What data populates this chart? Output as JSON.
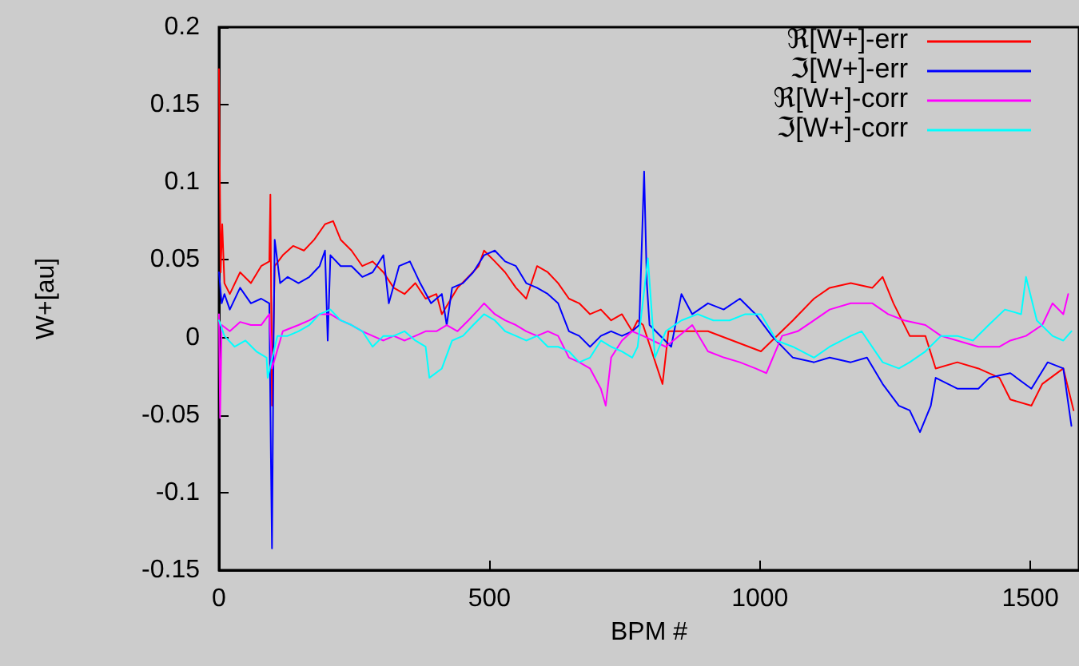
{
  "chart_data": {
    "type": "line",
    "xlabel": "BPM #",
    "ylabel": "W+[au]",
    "xlim": [
      0,
      1590
    ],
    "xticks": [
      0,
      500,
      1000,
      1500
    ],
    "ylim": [
      -0.15,
      0.2
    ],
    "yticks": [
      -0.15,
      -0.1,
      -0.05,
      0,
      0.05,
      0.1,
      0.15,
      0.2
    ],
    "grid": false,
    "legend": "top right",
    "marker": "none",
    "line_style": "solid",
    "series": [
      {
        "name": "ℜ[W+]-err",
        "color": "#ff0000",
        "x": [
          0,
          3,
          6,
          10,
          20,
          39,
          59,
          78,
          93,
          95,
          98,
          103,
          118,
          137,
          157,
          176,
          196,
          211,
          225,
          245,
          265,
          284,
          304,
          323,
          343,
          363,
          382,
          402,
          412,
          441,
          461,
          480,
          490,
          510,
          529,
          549,
          568,
          588,
          608,
          627,
          647,
          666,
          686,
          706,
          725,
          745,
          764,
          774,
          784,
          820,
          831,
          904,
          1002,
          1061,
          1100,
          1129,
          1168,
          1208,
          1227,
          1247,
          1277,
          1306,
          1325,
          1365,
          1404,
          1443,
          1463,
          1502,
          1522,
          1561,
          1580
        ],
        "values": [
          0.173,
          0.042,
          0.073,
          0.035,
          0.028,
          0.042,
          0.035,
          0.046,
          0.049,
          0.092,
          -0.044,
          0.046,
          0.053,
          0.059,
          0.056,
          0.063,
          0.073,
          0.075,
          0.063,
          0.056,
          0.046,
          0.049,
          0.042,
          0.032,
          0.028,
          0.035,
          0.025,
          0.028,
          0.015,
          0.032,
          0.039,
          0.046,
          0.056,
          0.049,
          0.042,
          0.032,
          0.025,
          0.046,
          0.042,
          0.035,
          0.025,
          0.022,
          0.015,
          0.018,
          0.011,
          0.015,
          0.004,
          0.011,
          0.008,
          -0.03,
          0.004,
          0.004,
          -0.009,
          0.011,
          0.025,
          0.032,
          0.035,
          0.032,
          0.039,
          0.022,
          0.001,
          0.001,
          -0.02,
          -0.016,
          -0.02,
          -0.026,
          -0.04,
          -0.044,
          -0.03,
          -0.02,
          -0.047
        ]
      },
      {
        "name": "ℑ[W+]-err",
        "color": "#0000ff",
        "x": [
          0,
          5,
          10,
          20,
          39,
          59,
          78,
          93,
          96,
          98,
          101,
          103,
          113,
          127,
          147,
          167,
          186,
          196,
          201,
          206,
          225,
          245,
          265,
          284,
          304,
          314,
          333,
          353,
          372,
          392,
          412,
          421,
          431,
          451,
          470,
          490,
          510,
          529,
          549,
          568,
          588,
          608,
          627,
          647,
          666,
          686,
          706,
          725,
          745,
          764,
          777,
          786,
          791,
          796,
          836,
          855,
          875,
          904,
          933,
          963,
          992,
          1022,
          1061,
          1100,
          1129,
          1168,
          1198,
          1227,
          1257,
          1277,
          1296,
          1316,
          1325,
          1365,
          1404,
          1424,
          1463,
          1502,
          1532,
          1561,
          1576
        ],
        "values": [
          0.042,
          0.022,
          0.028,
          0.018,
          0.032,
          0.022,
          0.025,
          0.022,
          -0.078,
          -0.136,
          0.001,
          0.063,
          0.035,
          0.039,
          0.035,
          0.039,
          0.046,
          0.056,
          -0.002,
          0.053,
          0.046,
          0.046,
          0.039,
          0.042,
          0.053,
          0.022,
          0.046,
          0.049,
          0.035,
          0.022,
          0.028,
          0.008,
          0.032,
          0.035,
          0.042,
          0.053,
          0.056,
          0.049,
          0.046,
          0.035,
          0.032,
          0.028,
          0.022,
          0.004,
          0.001,
          -0.006,
          0.001,
          0.004,
          0.001,
          0.004,
          0.008,
          0.107,
          0.035,
          0.008,
          -0.006,
          0.028,
          0.015,
          0.022,
          0.018,
          0.025,
          0.015,
          0.001,
          -0.013,
          -0.016,
          -0.013,
          -0.016,
          -0.013,
          -0.03,
          -0.044,
          -0.047,
          -0.061,
          -0.044,
          -0.026,
          -0.033,
          -0.033,
          -0.026,
          -0.023,
          -0.033,
          -0.016,
          -0.02,
          -0.057
        ]
      },
      {
        "name": "ℜ[W+]-corr",
        "color": "#ff00ff",
        "x": [
          0,
          2,
          5,
          20,
          39,
          59,
          78,
          93,
          98,
          118,
          147,
          167,
          186,
          206,
          225,
          245,
          265,
          284,
          304,
          323,
          343,
          363,
          382,
          402,
          421,
          441,
          461,
          480,
          490,
          510,
          529,
          549,
          568,
          588,
          608,
          627,
          647,
          666,
          686,
          706,
          715,
          725,
          745,
          764,
          784,
          826,
          875,
          904,
          934,
          963,
          992,
          1012,
          1041,
          1070,
          1100,
          1129,
          1168,
          1208,
          1237,
          1267,
          1306,
          1335,
          1365,
          1404,
          1443,
          1463,
          1492,
          1522,
          1541,
          1561,
          1570
        ],
        "values": [
          0.015,
          -0.052,
          0.008,
          0.004,
          0.01,
          0.008,
          0.008,
          0.015,
          -0.02,
          0.004,
          0.008,
          0.011,
          0.015,
          0.015,
          0.011,
          0.008,
          0.004,
          0.001,
          -0.002,
          0.001,
          -0.002,
          0.001,
          0.004,
          0.004,
          0.008,
          0.004,
          0.011,
          0.018,
          0.022,
          0.015,
          0.011,
          0.008,
          0.004,
          0.001,
          0.004,
          0.001,
          -0.013,
          -0.016,
          -0.02,
          -0.033,
          -0.044,
          -0.013,
          -0.002,
          0.004,
          0.001,
          -0.006,
          0.008,
          -0.009,
          -0.013,
          -0.016,
          -0.02,
          -0.023,
          0.001,
          0.004,
          0.011,
          0.018,
          0.022,
          0.022,
          0.015,
          0.011,
          0.008,
          0.001,
          -0.002,
          -0.006,
          -0.006,
          -0.002,
          0.001,
          0.008,
          0.022,
          0.015,
          0.028
        ]
      },
      {
        "name": "ℑ[W+]-corr",
        "color": "#00ffff",
        "x": [
          0,
          10,
          29,
          49,
          69,
          88,
          90,
          108,
          127,
          147,
          167,
          186,
          206,
          225,
          245,
          265,
          284,
          304,
          323,
          343,
          363,
          382,
          389,
          412,
          431,
          451,
          470,
          490,
          510,
          529,
          549,
          568,
          588,
          608,
          627,
          647,
          666,
          686,
          706,
          725,
          745,
          764,
          774,
          793,
          806,
          826,
          855,
          885,
          914,
          944,
          973,
          1002,
          1031,
          1061,
          1100,
          1129,
          1168,
          1188,
          1227,
          1257,
          1277,
          1306,
          1335,
          1365,
          1394,
          1423,
          1453,
          1483,
          1492,
          1512,
          1541,
          1561,
          1576
        ],
        "values": [
          0.011,
          0.001,
          -0.006,
          -0.002,
          -0.009,
          -0.013,
          -0.026,
          0.001,
          0.001,
          0.004,
          0.008,
          0.015,
          0.018,
          0.011,
          0.008,
          0.004,
          -0.006,
          0.001,
          0.001,
          0.004,
          -0.002,
          -0.006,
          -0.026,
          -0.02,
          -0.002,
          0.001,
          0.008,
          0.015,
          0.011,
          0.004,
          0.001,
          -0.002,
          0.001,
          -0.006,
          -0.006,
          -0.009,
          -0.016,
          -0.013,
          -0.002,
          -0.006,
          -0.009,
          -0.013,
          -0.006,
          0.051,
          -0.013,
          0.004,
          0.011,
          0.015,
          0.011,
          0.011,
          0.015,
          0.015,
          -0.002,
          -0.006,
          -0.013,
          -0.006,
          0.001,
          0.004,
          -0.016,
          -0.02,
          -0.016,
          -0.009,
          0.001,
          0.001,
          -0.002,
          0.008,
          0.018,
          0.015,
          0.039,
          0.011,
          0.001,
          -0.002,
          0.004
        ]
      }
    ]
  }
}
